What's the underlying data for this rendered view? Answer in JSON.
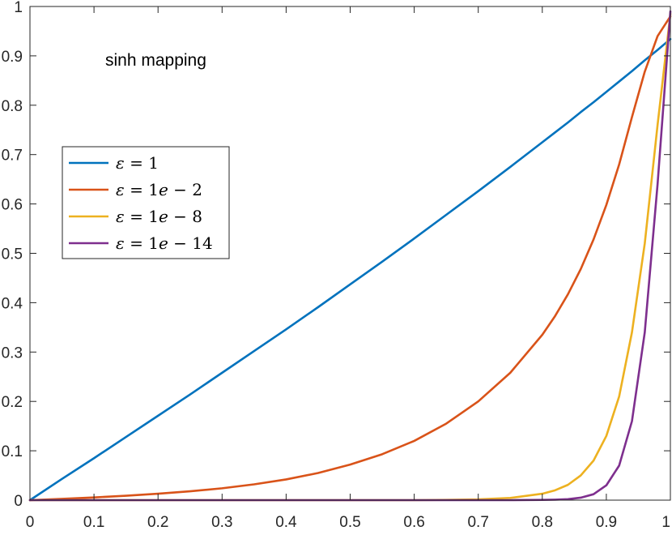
{
  "chart_data": {
    "type": "line",
    "title": "",
    "xlabel": "",
    "ylabel": "",
    "xlim": [
      0,
      1
    ],
    "ylim": [
      0,
      1
    ],
    "grid": false,
    "legend_placement": "left",
    "annotation": "sinh mapping",
    "x_ticks": [
      "0",
      "0.1",
      "0.2",
      "0.3",
      "0.4",
      "0.5",
      "0.6",
      "0.7",
      "0.8",
      "0.9",
      "1"
    ],
    "y_ticks": [
      "0",
      "0.1",
      "0.2",
      "0.3",
      "0.4",
      "0.5",
      "0.6",
      "0.7",
      "0.8",
      "0.9",
      "1"
    ],
    "x": [
      0,
      0.05,
      0.1,
      0.15,
      0.2,
      0.25,
      0.3,
      0.35,
      0.4,
      0.45,
      0.5,
      0.55,
      0.6,
      0.65,
      0.7,
      0.75,
      0.8,
      0.82,
      0.84,
      0.86,
      0.88,
      0.9,
      0.92,
      0.94,
      0.96,
      0.98,
      1
    ],
    "series": [
      {
        "name_parts": [
          {
            "t": "ε",
            "i": true
          },
          {
            "t": " = 1",
            "i": false
          }
        ],
        "color": "#0072BD",
        "values": [
          0,
          0.043,
          0.085,
          0.128,
          0.171,
          0.214,
          0.258,
          0.302,
          0.346,
          0.391,
          0.437,
          0.483,
          0.53,
          0.578,
          0.626,
          0.675,
          0.725,
          0.745,
          0.765,
          0.786,
          0.806,
          0.827,
          0.848,
          0.869,
          0.891,
          0.912,
          0.934
        ]
      },
      {
        "name_parts": [
          {
            "t": "ε",
            "i": true
          },
          {
            "t": " = 1",
            "i": false
          },
          {
            "t": "e",
            "i": true
          },
          {
            "t": " − 2",
            "i": false
          }
        ],
        "color": "#D95319",
        "values": [
          0,
          0.0025,
          0.0055,
          0.009,
          0.013,
          0.018,
          0.024,
          0.032,
          0.042,
          0.055,
          0.072,
          0.093,
          0.12,
          0.155,
          0.2,
          0.258,
          0.335,
          0.373,
          0.417,
          0.468,
          0.528,
          0.598,
          0.68,
          0.776,
          0.868,
          0.94,
          0.98
        ]
      },
      {
        "name_parts": [
          {
            "t": "ε",
            "i": true
          },
          {
            "t": " = 1",
            "i": false
          },
          {
            "t": "e",
            "i": true
          },
          {
            "t": " − 8",
            "i": false
          }
        ],
        "color": "#EDB120",
        "values": [
          0,
          0,
          0,
          0,
          0,
          0,
          0,
          0,
          0,
          0,
          0,
          0,
          0,
          0.0005,
          0.0015,
          0.0045,
          0.013,
          0.02,
          0.031,
          0.05,
          0.08,
          0.13,
          0.21,
          0.34,
          0.52,
          0.76,
          0.985
        ]
      },
      {
        "name_parts": [
          {
            "t": "ε",
            "i": true
          },
          {
            "t": " = 1",
            "i": false
          },
          {
            "t": "e",
            "i": true
          },
          {
            "t": " − 14",
            "i": false
          }
        ],
        "color": "#7E2F8E",
        "values": [
          0,
          0,
          0,
          0,
          0,
          0,
          0,
          0,
          0,
          0,
          0,
          0,
          0,
          0,
          0,
          0,
          0.0005,
          0.001,
          0.002,
          0.005,
          0.012,
          0.03,
          0.07,
          0.16,
          0.34,
          0.64,
          0.99
        ]
      }
    ]
  }
}
